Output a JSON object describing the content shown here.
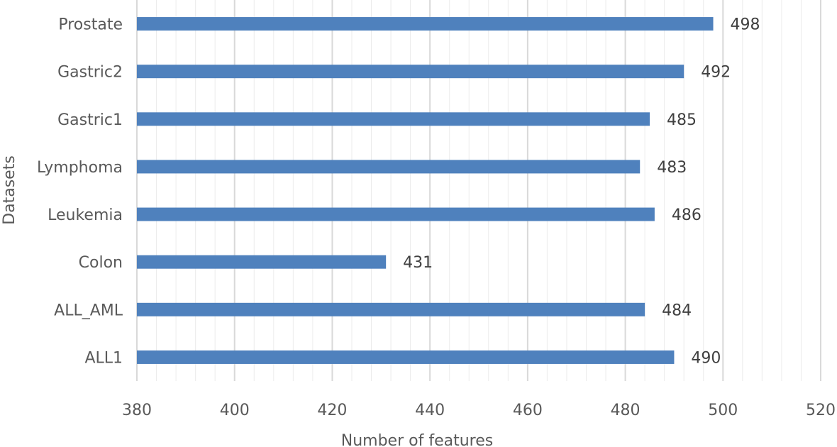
{
  "chart_data": {
    "type": "bar",
    "orientation": "horizontal",
    "title": "",
    "xlabel": "Number of features",
    "ylabel": "Datasets",
    "categories": [
      "ALL1",
      "ALL_AML",
      "Colon",
      "Leukemia",
      "Lymphoma",
      "Gastric1",
      "Gastric2",
      "Prostate"
    ],
    "values": [
      490,
      484,
      431,
      486,
      483,
      485,
      492,
      498
    ],
    "xlim": [
      380,
      520
    ],
    "xticks": [
      380,
      400,
      420,
      440,
      460,
      480,
      500,
      520
    ],
    "grid": true,
    "legend": "none",
    "bar_color": "#4f81bd",
    "grid_major_color": "#d9d9d9",
    "grid_minor_color": "#ececec"
  }
}
